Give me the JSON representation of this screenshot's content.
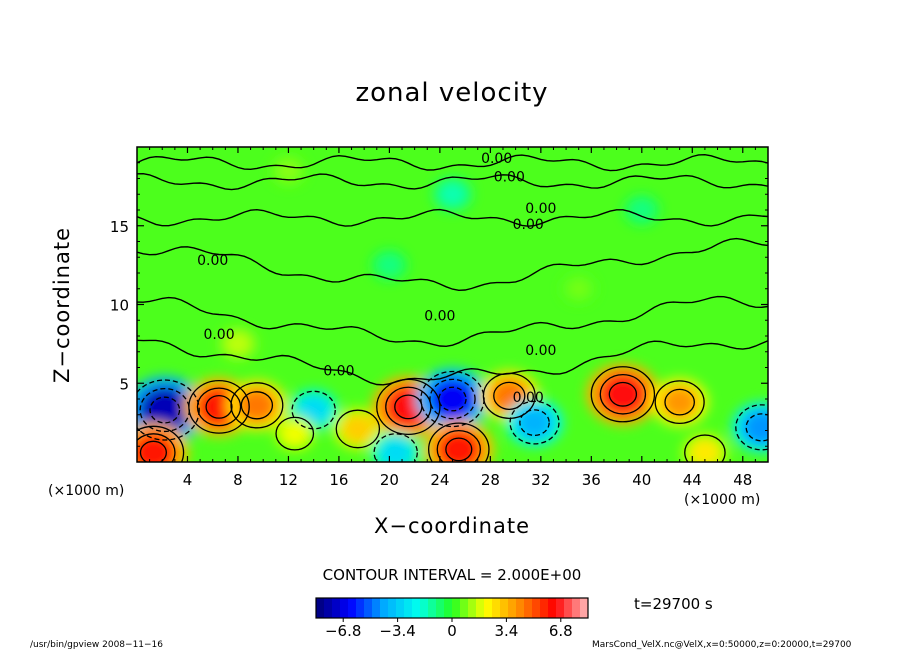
{
  "chart_data": {
    "type": "heatmap",
    "title": "zonal velocity",
    "xlabel": "X−coordinate",
    "ylabel": "Z−coordinate",
    "x_unit_label": "(×1000 m)",
    "xlim": [
      0,
      50
    ],
    "ylim": [
      0,
      20
    ],
    "x_ticks": [
      4,
      8,
      12,
      16,
      20,
      24,
      28,
      32,
      36,
      40,
      44,
      48
    ],
    "y_ticks": [
      5,
      10,
      15
    ],
    "contour_interval_text": "CONTOUR INTERVAL = 2.000E+00",
    "contour_labels": [
      {
        "x": 28.5,
        "z": 19.0,
        "text": "0.00"
      },
      {
        "x": 29.5,
        "z": 17.8,
        "text": "0.00"
      },
      {
        "x": 32.0,
        "z": 15.8,
        "text": "0.00"
      },
      {
        "x": 31.0,
        "z": 14.8,
        "text": "0.00"
      },
      {
        "x": 6.0,
        "z": 12.5,
        "text": "0.00"
      },
      {
        "x": 6.5,
        "z": 7.8,
        "text": "0.00"
      },
      {
        "x": 24.0,
        "z": 9.0,
        "text": "0.00"
      },
      {
        "x": 16.0,
        "z": 5.5,
        "text": "0.00"
      },
      {
        "x": 32.0,
        "z": 6.8,
        "text": "0.00"
      },
      {
        "x": 31.0,
        "z": 3.8,
        "text": "0.00"
      }
    ],
    "features": [
      {
        "x": 2.2,
        "z": 3.3,
        "value": -7.5
      },
      {
        "x": 6.5,
        "z": 3.5,
        "value": 6.0
      },
      {
        "x": 9.5,
        "z": 3.6,
        "value": 4.5
      },
      {
        "x": 14.0,
        "z": 3.3,
        "value": -3.0
      },
      {
        "x": 17.5,
        "z": 2.1,
        "value": 3.0
      },
      {
        "x": 21.5,
        "z": 3.5,
        "value": 6.5
      },
      {
        "x": 25.0,
        "z": 4.0,
        "value": -6.5
      },
      {
        "x": 25.5,
        "z": 0.8,
        "value": 6.0
      },
      {
        "x": 29.5,
        "z": 4.2,
        "value": 4.5
      },
      {
        "x": 31.5,
        "z": 2.5,
        "value": -4.0
      },
      {
        "x": 38.5,
        "z": 4.3,
        "value": 6.5
      },
      {
        "x": 43.0,
        "z": 3.8,
        "value": 4.0
      },
      {
        "x": 49.5,
        "z": 2.2,
        "value": -4.5
      },
      {
        "x": 1.3,
        "z": 0.6,
        "value": 6.0
      },
      {
        "x": 20.5,
        "z": 0.6,
        "value": -3.0
      },
      {
        "x": 12.5,
        "z": 1.8,
        "value": 2.0
      },
      {
        "x": 45.0,
        "z": 0.6,
        "value": 2.5
      },
      {
        "x": 25.0,
        "z": 17.0,
        "value": -1.5
      },
      {
        "x": 20.0,
        "z": 12.5,
        "value": -1.0
      },
      {
        "x": 40.0,
        "z": 16.0,
        "value": -1.0
      },
      {
        "x": 12.0,
        "z": 18.5,
        "value": 1.0
      },
      {
        "x": 8.0,
        "z": 7.5,
        "value": 1.5
      },
      {
        "x": 35.0,
        "z": 11.0,
        "value": 0.8
      }
    ],
    "colorbar": {
      "vmin": -8.5,
      "vmax": 8.5,
      "tick_values": [
        -6.8,
        -3.4,
        0,
        3.4,
        6.8
      ],
      "tick_labels": [
        "−6.8",
        "−3.4",
        "0",
        "3.4",
        "6.8"
      ],
      "colors": [
        "#000077",
        "#0000ff",
        "#00aaff",
        "#00ffee",
        "#22ff22",
        "#ffff00",
        "#ff8800",
        "#ff0000",
        "#ffbbbb"
      ]
    },
    "time_label": "t=29700 s",
    "footer_left": "/usr/bin/gpview  2008−11−16",
    "footer_right": "MarsCond_VelX.nc@VelX,x=0:50000,z=0:20000,t=29700"
  }
}
